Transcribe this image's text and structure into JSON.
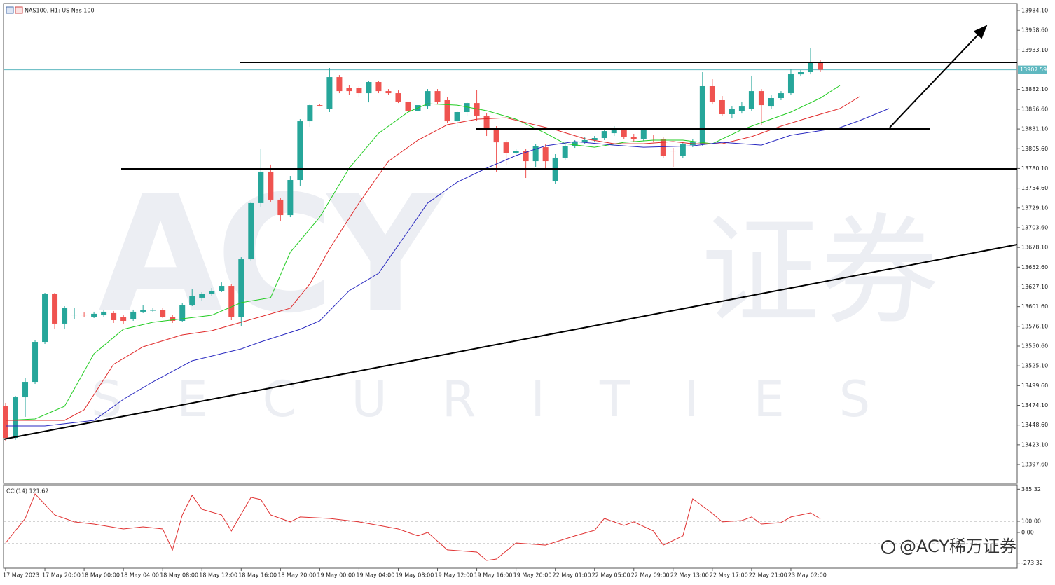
{
  "chart_data": {
    "type": "candlestick",
    "title": "NAS100, H1: US Nas 100",
    "categories": [
      "17 May 2023",
      null,
      null,
      null,
      "17 May 20:00",
      null,
      null,
      null,
      "18 May 00:00",
      null,
      null,
      null,
      "18 May 04:00",
      null,
      null,
      null,
      "18 May 08:00",
      null,
      null,
      null,
      "18 May 12:00",
      null,
      null,
      null,
      "18 May 16:00",
      null,
      null,
      null,
      "18 May 20:00",
      null,
      null,
      null,
      "19 May 00:00",
      null,
      null,
      null,
      "19 May 04:00",
      null,
      null,
      null,
      "19 May 08:00",
      null,
      null,
      null,
      "19 May 12:00",
      null,
      null,
      null,
      "19 May 16:00",
      null,
      null,
      null,
      "19 May 20:00",
      null,
      null,
      null,
      "22 May 01:00",
      null,
      null,
      null,
      "22 May 05:00",
      null,
      null,
      null,
      "22 May 09:00",
      null,
      null,
      null,
      "22 May 13:00",
      null,
      null,
      null,
      "22 May 17:00",
      null,
      null,
      null,
      "22 May 21:00",
      null,
      null,
      null,
      "23 May 02:00",
      null,
      null,
      null
    ],
    "ohlc": [
      [
        13472.8,
        13477.3,
        13427.5,
        13432.0
      ],
      [
        13432.0,
        13486.3,
        13429.4,
        13484.5
      ],
      [
        13484.5,
        13509.0,
        13459.2,
        13504.4
      ],
      [
        13504.4,
        13558.7,
        13501.7,
        13556.0
      ],
      [
        13556.0,
        13619.4,
        13553.3,
        13617.6
      ],
      [
        13617.6,
        13619.4,
        13572.3,
        13579.6
      ],
      [
        13579.6,
        13602.2,
        13572.3,
        13599.5
      ],
      [
        13590.4,
        13599.5,
        13585.9,
        13591.3
      ],
      [
        13591.3,
        13594.0,
        13587.7,
        13590.4
      ],
      [
        13588.6,
        13595.0,
        13586.8,
        13592.3
      ],
      [
        13590.4,
        13597.7,
        13588.6,
        13595.0
      ],
      [
        13593.2,
        13595.9,
        13580.5,
        13584.1
      ],
      [
        13587.7,
        13590.4,
        13579.6,
        13583.2
      ],
      [
        13585.9,
        13597.7,
        13583.2,
        13595.0
      ],
      [
        13595.0,
        13603.1,
        13593.2,
        13596.8
      ],
      [
        13596.8,
        13599.5,
        13594.1,
        13597.2
      ],
      [
        13596.8,
        13600.4,
        13586.8,
        13588.6
      ],
      [
        13588.6,
        13591.3,
        13580.5,
        13583.2
      ],
      [
        13583.2,
        13606.7,
        13581.4,
        13604.0
      ],
      [
        13604.0,
        13623.9,
        13602.2,
        13614.9
      ],
      [
        13613.1,
        13620.3,
        13608.6,
        13617.6
      ],
      [
        13617.6,
        13625.7,
        13615.8,
        13622.1
      ],
      [
        13622.1,
        13632.9,
        13620.3,
        13628.4
      ],
      [
        13628.4,
        13631.1,
        13584.1,
        13588.6
      ],
      [
        13588.6,
        13665.5,
        13576.8,
        13662.8
      ],
      [
        13662.8,
        13737.1,
        13660.1,
        13735.3
      ],
      [
        13735.3,
        13805.8,
        13730.8,
        13776.0
      ],
      [
        13776.0,
        13785.1,
        13737.1,
        13739.8
      ],
      [
        13739.8,
        13742.5,
        13712.6,
        13719.8
      ],
      [
        13719.8,
        13770.5,
        13717.1,
        13765.1
      ],
      [
        13765.1,
        13843.8,
        13757.9,
        13841.1
      ],
      [
        13841.1,
        13863.7,
        13833.9,
        13861.9
      ],
      [
        13861.9,
        13863.7,
        13860.1,
        13861.0
      ],
      [
        13857.4,
        13909.9,
        13852.9,
        13898.1
      ],
      [
        13898.1,
        13900.8,
        13877.3,
        13880.0
      ],
      [
        13884.5,
        13887.3,
        13875.5,
        13880.0
      ],
      [
        13884.5,
        13886.4,
        13872.8,
        13877.3
      ],
      [
        13877.3,
        13893.6,
        13865.5,
        13891.8
      ],
      [
        13891.8,
        13893.6,
        13877.3,
        13880.0
      ],
      [
        13880.0,
        13882.7,
        13875.5,
        13877.3
      ],
      [
        13877.3,
        13880.9,
        13864.6,
        13866.5
      ],
      [
        13866.5,
        13868.3,
        13851.9,
        13854.7
      ],
      [
        13854.7,
        13863.7,
        13842.0,
        13861.9
      ],
      [
        13860.1,
        13882.7,
        13857.4,
        13880.0
      ],
      [
        13880.0,
        13882.7,
        13862.8,
        13866.5
      ],
      [
        13868.3,
        13871.9,
        13838.4,
        13841.1
      ],
      [
        13841.1,
        13854.7,
        13833.9,
        13852.9
      ],
      [
        13852.9,
        13866.5,
        13848.4,
        13864.6
      ],
      [
        13864.6,
        13881.8,
        13841.1,
        13848.4
      ],
      [
        13848.4,
        13851.1,
        13822.1,
        13832.1
      ],
      [
        13832.1,
        13834.8,
        13776.0,
        13813.9
      ],
      [
        13813.9,
        13816.7,
        13785.0,
        13800.4
      ],
      [
        13800.4,
        13805.8,
        13796.8,
        13803.1
      ],
      [
        13803.1,
        13805.8,
        13767.8,
        13789.5
      ],
      [
        13789.5,
        13812.1,
        13781.4,
        13809.4
      ],
      [
        13807.6,
        13811.2,
        13780.5,
        13789.5
      ],
      [
        13764.2,
        13798.6,
        13760.6,
        13794.1
      ],
      [
        13794.1,
        13811.2,
        13791.4,
        13809.4
      ],
      [
        13809.4,
        13816.7,
        13806.7,
        13814.9
      ],
      [
        13814.9,
        13820.3,
        13812.1,
        13816.7
      ],
      [
        13816.7,
        13822.1,
        13813.9,
        13819.4
      ],
      [
        13819.4,
        13830.2,
        13816.7,
        13828.4
      ],
      [
        13825.7,
        13834.8,
        13822.1,
        13830.2
      ],
      [
        13830.2,
        13833.0,
        13817.6,
        13821.2
      ],
      [
        13821.2,
        13824.8,
        13814.9,
        13818.5
      ],
      [
        13818.5,
        13832.1,
        13815.8,
        13830.2
      ],
      [
        13818.5,
        13823.0,
        13813.9,
        13817.6
      ],
      [
        13818.5,
        13820.3,
        13793.2,
        13796.8
      ],
      [
        13803.1,
        13806.7,
        13782.3,
        13802.2
      ],
      [
        13796.8,
        13814.8,
        13793.2,
        13812.1
      ],
      [
        13810.3,
        13817.6,
        13807.6,
        13813.9
      ],
      [
        13812.1,
        13904.5,
        13809.4,
        13886.4
      ],
      [
        13886.4,
        13895.4,
        13862.8,
        13866.5
      ],
      [
        13868.3,
        13873.7,
        13847.5,
        13850.2
      ],
      [
        13850.2,
        13860.1,
        13844.7,
        13857.4
      ],
      [
        13854.7,
        13866.5,
        13851.0,
        13860.1
      ],
      [
        13857.4,
        13900.0,
        13854.7,
        13880.0
      ],
      [
        13880.0,
        13882.7,
        13836.6,
        13861.9
      ],
      [
        13860.1,
        13874.6,
        13857.4,
        13871.0
      ],
      [
        13871.0,
        13880.0,
        13868.3,
        13877.3
      ],
      [
        13877.3,
        13909.0,
        13874.6,
        13902.6
      ],
      [
        13901.7,
        13907.2,
        13899.0,
        13904.5
      ],
      [
        13904.5,
        13936.1,
        13901.7,
        13918.0
      ],
      [
        13918.0,
        13920.7,
        13904.5,
        13907.59
      ]
    ],
    "up_color": "#26a69a",
    "down_color": "#ef5350",
    "ylim": [
      13373.2,
      13993.2
    ],
    "yticks": [
      {
        "value": 13984.1,
        "label": "13984.10"
      },
      {
        "value": 13958.6,
        "label": "13958.60"
      },
      {
        "value": 13933.1,
        "label": "13933.10"
      },
      {
        "value": 13882.1,
        "label": "13882.10"
      },
      {
        "value": 13856.6,
        "label": "13856.60"
      },
      {
        "value": 13831.1,
        "label": "13831.10"
      },
      {
        "value": 13805.6,
        "label": "13805.60"
      },
      {
        "value": 13780.1,
        "label": "13780.10"
      },
      {
        "value": 13754.6,
        "label": "13754.60"
      },
      {
        "value": 13729.1,
        "label": "13729.10"
      },
      {
        "value": 13703.6,
        "label": "13703.60"
      },
      {
        "value": 13678.1,
        "label": "13678.10"
      },
      {
        "value": 13652.6,
        "label": "13652.60"
      },
      {
        "value": 13627.1,
        "label": "13627.10"
      },
      {
        "value": 13601.6,
        "label": "13601.60"
      },
      {
        "value": 13576.1,
        "label": "13576.10"
      },
      {
        "value": 13550.6,
        "label": "13550.60"
      },
      {
        "value": 13525.1,
        "label": "13525.10"
      },
      {
        "value": 13499.6,
        "label": "13499.60"
      },
      {
        "value": 13474.1,
        "label": "13474.10"
      },
      {
        "value": 13448.6,
        "label": "13448.60"
      },
      {
        "value": 13423.1,
        "label": "13423.10"
      },
      {
        "value": 13397.6,
        "label": "13397.60"
      }
    ],
    "current_price": 13907.59,
    "current_price_color": "#5fb8c0",
    "moving_averages": [
      {
        "color": "#22cc22",
        "x": [
          0,
          3,
          6,
          9,
          12,
          15,
          18,
          21,
          24,
          27,
          29,
          32,
          35,
          38,
          41,
          43,
          46,
          49,
          52,
          55,
          57,
          60,
          63,
          66,
          69,
          72,
          75,
          77,
          80,
          83,
          85
        ],
        "values": [
          13454.7,
          13456.5,
          13472.8,
          13540.6,
          13572.3,
          13581.4,
          13585.9,
          13590.4,
          13606.7,
          13613.1,
          13671.9,
          13717.1,
          13780.5,
          13825.7,
          13852.9,
          13863.7,
          13861.9,
          13854.7,
          13843.8,
          13825.7,
          13812.1,
          13807.6,
          13813.9,
          13816.7,
          13816.7,
          13812.1,
          13830.2,
          13839.3,
          13852.9,
          13871.0,
          13887.3
        ]
      },
      {
        "color": "#e02828",
        "x": [
          0,
          6,
          8,
          11,
          14,
          18,
          21,
          24,
          29,
          31,
          33,
          36,
          39,
          42,
          45,
          48,
          51,
          53,
          56,
          59,
          62,
          65,
          68,
          70,
          73,
          76,
          79,
          82,
          85,
          87
        ],
        "values": [
          13454.7,
          13454.7,
          13468.3,
          13527.1,
          13549.7,
          13565.1,
          13570.5,
          13581.4,
          13599.5,
          13631.1,
          13676.4,
          13735.3,
          13789.5,
          13816.7,
          13836.6,
          13843.8,
          13845.6,
          13839.3,
          13830.2,
          13818.5,
          13812.1,
          13812.1,
          13814.9,
          13812.1,
          13812.1,
          13821.2,
          13834.8,
          13846.5,
          13857.4,
          13872.8
        ]
      },
      {
        "color": "#2828c0",
        "x": [
          0,
          4,
          9,
          12,
          15,
          19,
          24,
          26,
          30,
          32,
          35,
          38,
          41,
          43,
          46,
          49,
          52,
          55,
          58,
          62,
          65,
          70,
          73,
          77,
          80,
          85,
          87,
          90
        ],
        "values": [
          13447.4,
          13447.4,
          13454.7,
          13481.8,
          13504.4,
          13531.6,
          13547.0,
          13556.0,
          13572.3,
          13583.2,
          13622.1,
          13644.7,
          13699.0,
          13735.3,
          13762.4,
          13780.5,
          13796.8,
          13809.4,
          13814.9,
          13810.3,
          13807.6,
          13809.4,
          13813.9,
          13810.3,
          13823.0,
          13832.9,
          13842.0,
          13857.4
        ]
      }
    ],
    "indicator": {
      "type": "line",
      "title": "CCI(14) 121.62",
      "color": "#e03030",
      "x": [
        0,
        2,
        3,
        5,
        7,
        9,
        12,
        14,
        16,
        17,
        18,
        19,
        20,
        22,
        23,
        25,
        26,
        27,
        29,
        30,
        33,
        36,
        38,
        40,
        42,
        43,
        45,
        48,
        49,
        50,
        52,
        55,
        58,
        60,
        61,
        63,
        64,
        66,
        67,
        69,
        70,
        72,
        73,
        75,
        76,
        77,
        79,
        80,
        82,
        83
      ],
      "values": [
        -94,
        125,
        344,
        156,
        94,
        75,
        31,
        50,
        31,
        -156,
        156,
        331,
        206,
        156,
        13,
        313,
        294,
        156,
        94,
        138,
        125,
        94,
        63,
        31,
        -31,
        0,
        -156,
        -175,
        -250,
        -238,
        -94,
        -113,
        -31,
        19,
        125,
        63,
        94,
        13,
        -113,
        -31,
        300,
        169,
        94,
        106,
        138,
        75,
        88,
        138,
        175,
        121.62
      ],
      "ylim": [
        -319,
        425
      ],
      "yticks": [
        385.32,
        {
          "value": 100,
          "label": "100.00"
        },
        {
          "value": 0,
          "label": "0.00"
        },
        -273.32
      ],
      "levels": [
        100,
        -100
      ]
    },
    "watermark": [
      "ACY",
      "证券",
      "SECURITIES"
    ],
    "credit": "@ACY稀万证券"
  }
}
